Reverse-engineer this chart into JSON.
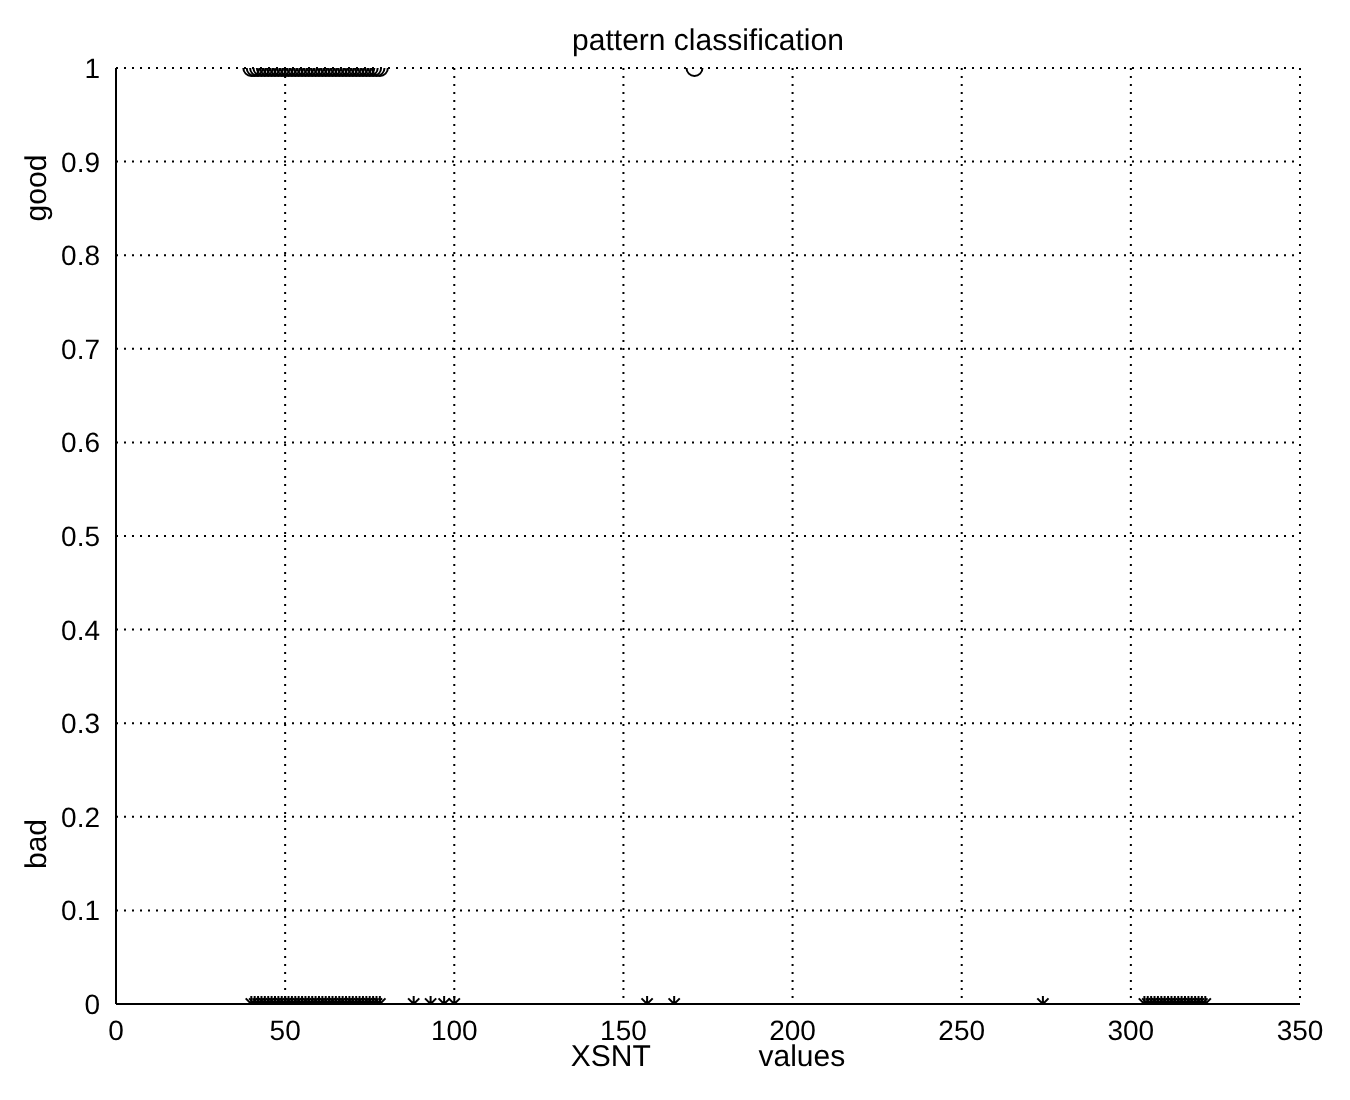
{
  "chart_data": {
    "type": "scatter",
    "title": "pattern classification",
    "xlabel": "XSNT values",
    "ylabel": "good",
    "annotations": [
      "bad"
    ],
    "xlim": [
      0,
      350
    ],
    "xticks": [
      0,
      50,
      100,
      150,
      200,
      250,
      300,
      350
    ],
    "ylim": [
      0,
      1
    ],
    "yticks": [
      0,
      0.1,
      0.2,
      0.3,
      0.4,
      0.5,
      0.6,
      0.7,
      0.8,
      0.9,
      1
    ],
    "grid": true,
    "legend": false,
    "series": [
      {
        "color": "#000000",
        "marker": "circle",
        "x": [
          40,
          41,
          42,
          43,
          44,
          45,
          46,
          47,
          48,
          49,
          50,
          51,
          52,
          53,
          54,
          55,
          56,
          57,
          58,
          59,
          60,
          61,
          62,
          63,
          64,
          65,
          66,
          67,
          68,
          69,
          70,
          71,
          72,
          73,
          74,
          75,
          76,
          77,
          78,
          171
        ],
        "values": [
          1,
          1,
          1,
          1,
          1,
          1,
          1,
          1,
          1,
          1,
          1,
          1,
          1,
          1,
          1,
          1,
          1,
          1,
          1,
          1,
          1,
          1,
          1,
          1,
          1,
          1,
          1,
          1,
          1,
          1,
          1,
          1,
          1,
          1,
          1,
          1,
          1,
          1,
          1,
          1
        ]
      },
      {
        "color": "#000000",
        "marker": "cross",
        "x": [
          40,
          41,
          42,
          43,
          44,
          45,
          46,
          47,
          48,
          49,
          50,
          51,
          52,
          53,
          54,
          55,
          56,
          57,
          58,
          59,
          60,
          61,
          62,
          63,
          64,
          65,
          66,
          67,
          68,
          69,
          70,
          71,
          72,
          73,
          74,
          75,
          76,
          77,
          78,
          88,
          93,
          97,
          100,
          157,
          165,
          274,
          304,
          305,
          306,
          307,
          308,
          309,
          310,
          311,
          312,
          313,
          314,
          315,
          316,
          317,
          318,
          319,
          320,
          321,
          322
        ],
        "values": [
          0,
          0,
          0,
          0,
          0,
          0,
          0,
          0,
          0,
          0,
          0,
          0,
          0,
          0,
          0,
          0,
          0,
          0,
          0,
          0,
          0,
          0,
          0,
          0,
          0,
          0,
          0,
          0,
          0,
          0,
          0,
          0,
          0,
          0,
          0,
          0,
          0,
          0,
          0,
          0,
          0,
          0,
          0,
          0,
          0,
          0,
          0,
          0,
          0,
          0,
          0,
          0,
          0,
          0,
          0,
          0,
          0,
          0,
          0,
          0,
          0,
          0,
          0,
          0,
          0
        ]
      }
    ]
  }
}
